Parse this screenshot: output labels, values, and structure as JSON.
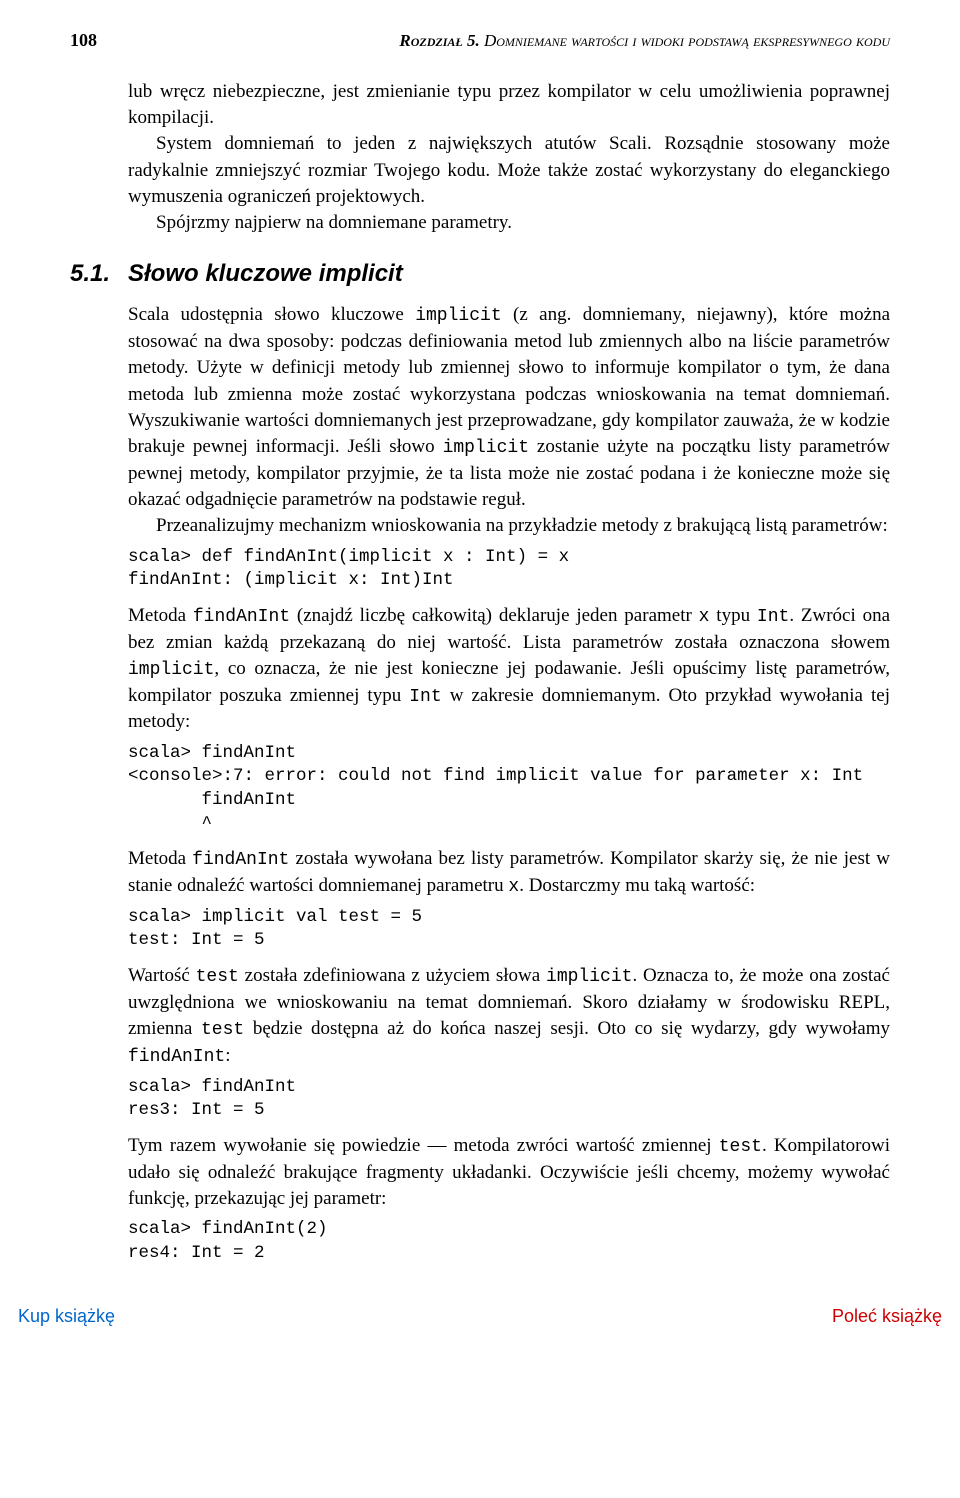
{
  "header": {
    "page_number": "108",
    "chapter_label": "Rozdział 5.",
    "chapter_title": "Domniemane wartości i widoki podstawą ekspresywnego kodu"
  },
  "intro": {
    "p1": "lub wręcz niebezpieczne, jest zmienianie typu przez kompilator w celu umożliwienia poprawnej kompilacji.",
    "p2": "System domniemań to jeden z największych atutów Scali. Rozsądnie stosowany może radykalnie zmniejszyć rozmiar Twojego kodu. Może także zostać wykorzystany do eleganckiego wymuszenia ograniczeń projektowych.",
    "p3": "Spójrzmy najpierw na domniemane parametry."
  },
  "section": {
    "num": "5.1.",
    "title": "Słowo kluczowe implicit"
  },
  "body": {
    "p1_a": "Scala udostępnia słowo kluczowe ",
    "p1_code": "implicit",
    "p1_b": " (z ang. domniemany, niejawny), które można stosować na dwa sposoby: podczas definiowania metod lub zmiennych albo na liście parametrów metody. Użyte w definicji metody lub zmiennej słowo to informuje kompilator o tym, że dana metoda lub zmienna może zostać wykorzystana podczas wnioskowania na temat domniemań. Wyszukiwanie wartości domniemanych jest przeprowadzane, gdy kompilator zauważa, że w kodzie brakuje pewnej informacji. Jeśli słowo ",
    "p1_code2": "implicit",
    "p1_c": " zostanie użyte na początku listy parametrów pewnej metody, kompilator przyjmie, że ta lista może nie zostać podana i że konieczne może się okazać odgadnięcie parametrów na podstawie reguł.",
    "p2": "Przeanalizujmy mechanizm wnioskowania na przykładzie metody z brakującą listą parametrów:",
    "code1": "scala> def findAnInt(implicit x : Int) = x\nfindAnInt: (implicit x: Int)Int",
    "p3_a": "Metoda ",
    "p3_code1": "findAnInt",
    "p3_b": " (znajdź liczbę całkowitą) deklaruje jeden parametr ",
    "p3_code2": "x",
    "p3_c": " typu ",
    "p3_code3": "Int",
    "p3_d": ". Zwróci ona bez zmian każdą przekazaną do niej wartość. Lista parametrów została oznaczona słowem ",
    "p3_code4": "implicit",
    "p3_e": ", co oznacza, że nie jest konieczne jej podawanie. Jeśli opuścimy listę parametrów, kompilator poszuka zmiennej typu ",
    "p3_code5": "Int",
    "p3_f": " w zakresie domniemanym. Oto przykład wywołania tej metody:",
    "code2": "scala> findAnInt\n<console>:7: error: could not find implicit value for parameter x: Int\n       findAnInt\n       ^",
    "p4_a": "Metoda ",
    "p4_code1": "findAnInt",
    "p4_b": " została wywołana bez listy parametrów. Kompilator skarży się, że nie jest w stanie odnaleźć wartości domniemanej parametru ",
    "p4_code2": "x",
    "p4_c": ". Dostarczmy mu taką wartość:",
    "code3": "scala> implicit val test = 5\ntest: Int = 5",
    "p5_a": "Wartość ",
    "p5_code1": "test",
    "p5_b": " została zdefiniowana z użyciem słowa ",
    "p5_code2": "implicit",
    "p5_c": ". Oznacza to, że może ona zostać uwzględniona we wnioskowaniu na temat domniemań. Skoro działamy w środowisku REPL, zmienna ",
    "p5_code3": "test",
    "p5_d": " będzie dostępna aż do końca naszej sesji. Oto co się wydarzy, gdy wywołamy ",
    "p5_code4": "findAnInt",
    "p5_e": ":",
    "code4": "scala> findAnInt\nres3: Int = 5",
    "p6_a": "Tym razem wywołanie się powiedzie — metoda zwróci wartość zmiennej ",
    "p6_code1": "test",
    "p6_b": ". Kompilatorowi udało się odnaleźć brakujące fragmenty układanki. Oczywiście jeśli chcemy, możemy wywołać funkcję, przekazując jej parametr:",
    "code5": "scala> findAnInt(2)\nres4: Int = 2"
  },
  "footer": {
    "left": "Kup książkę",
    "right": "Poleć książkę"
  },
  "colors": {
    "text": "#000000",
    "link_blue": "#0066cc",
    "link_red": "#cc0000",
    "background": "#ffffff"
  }
}
